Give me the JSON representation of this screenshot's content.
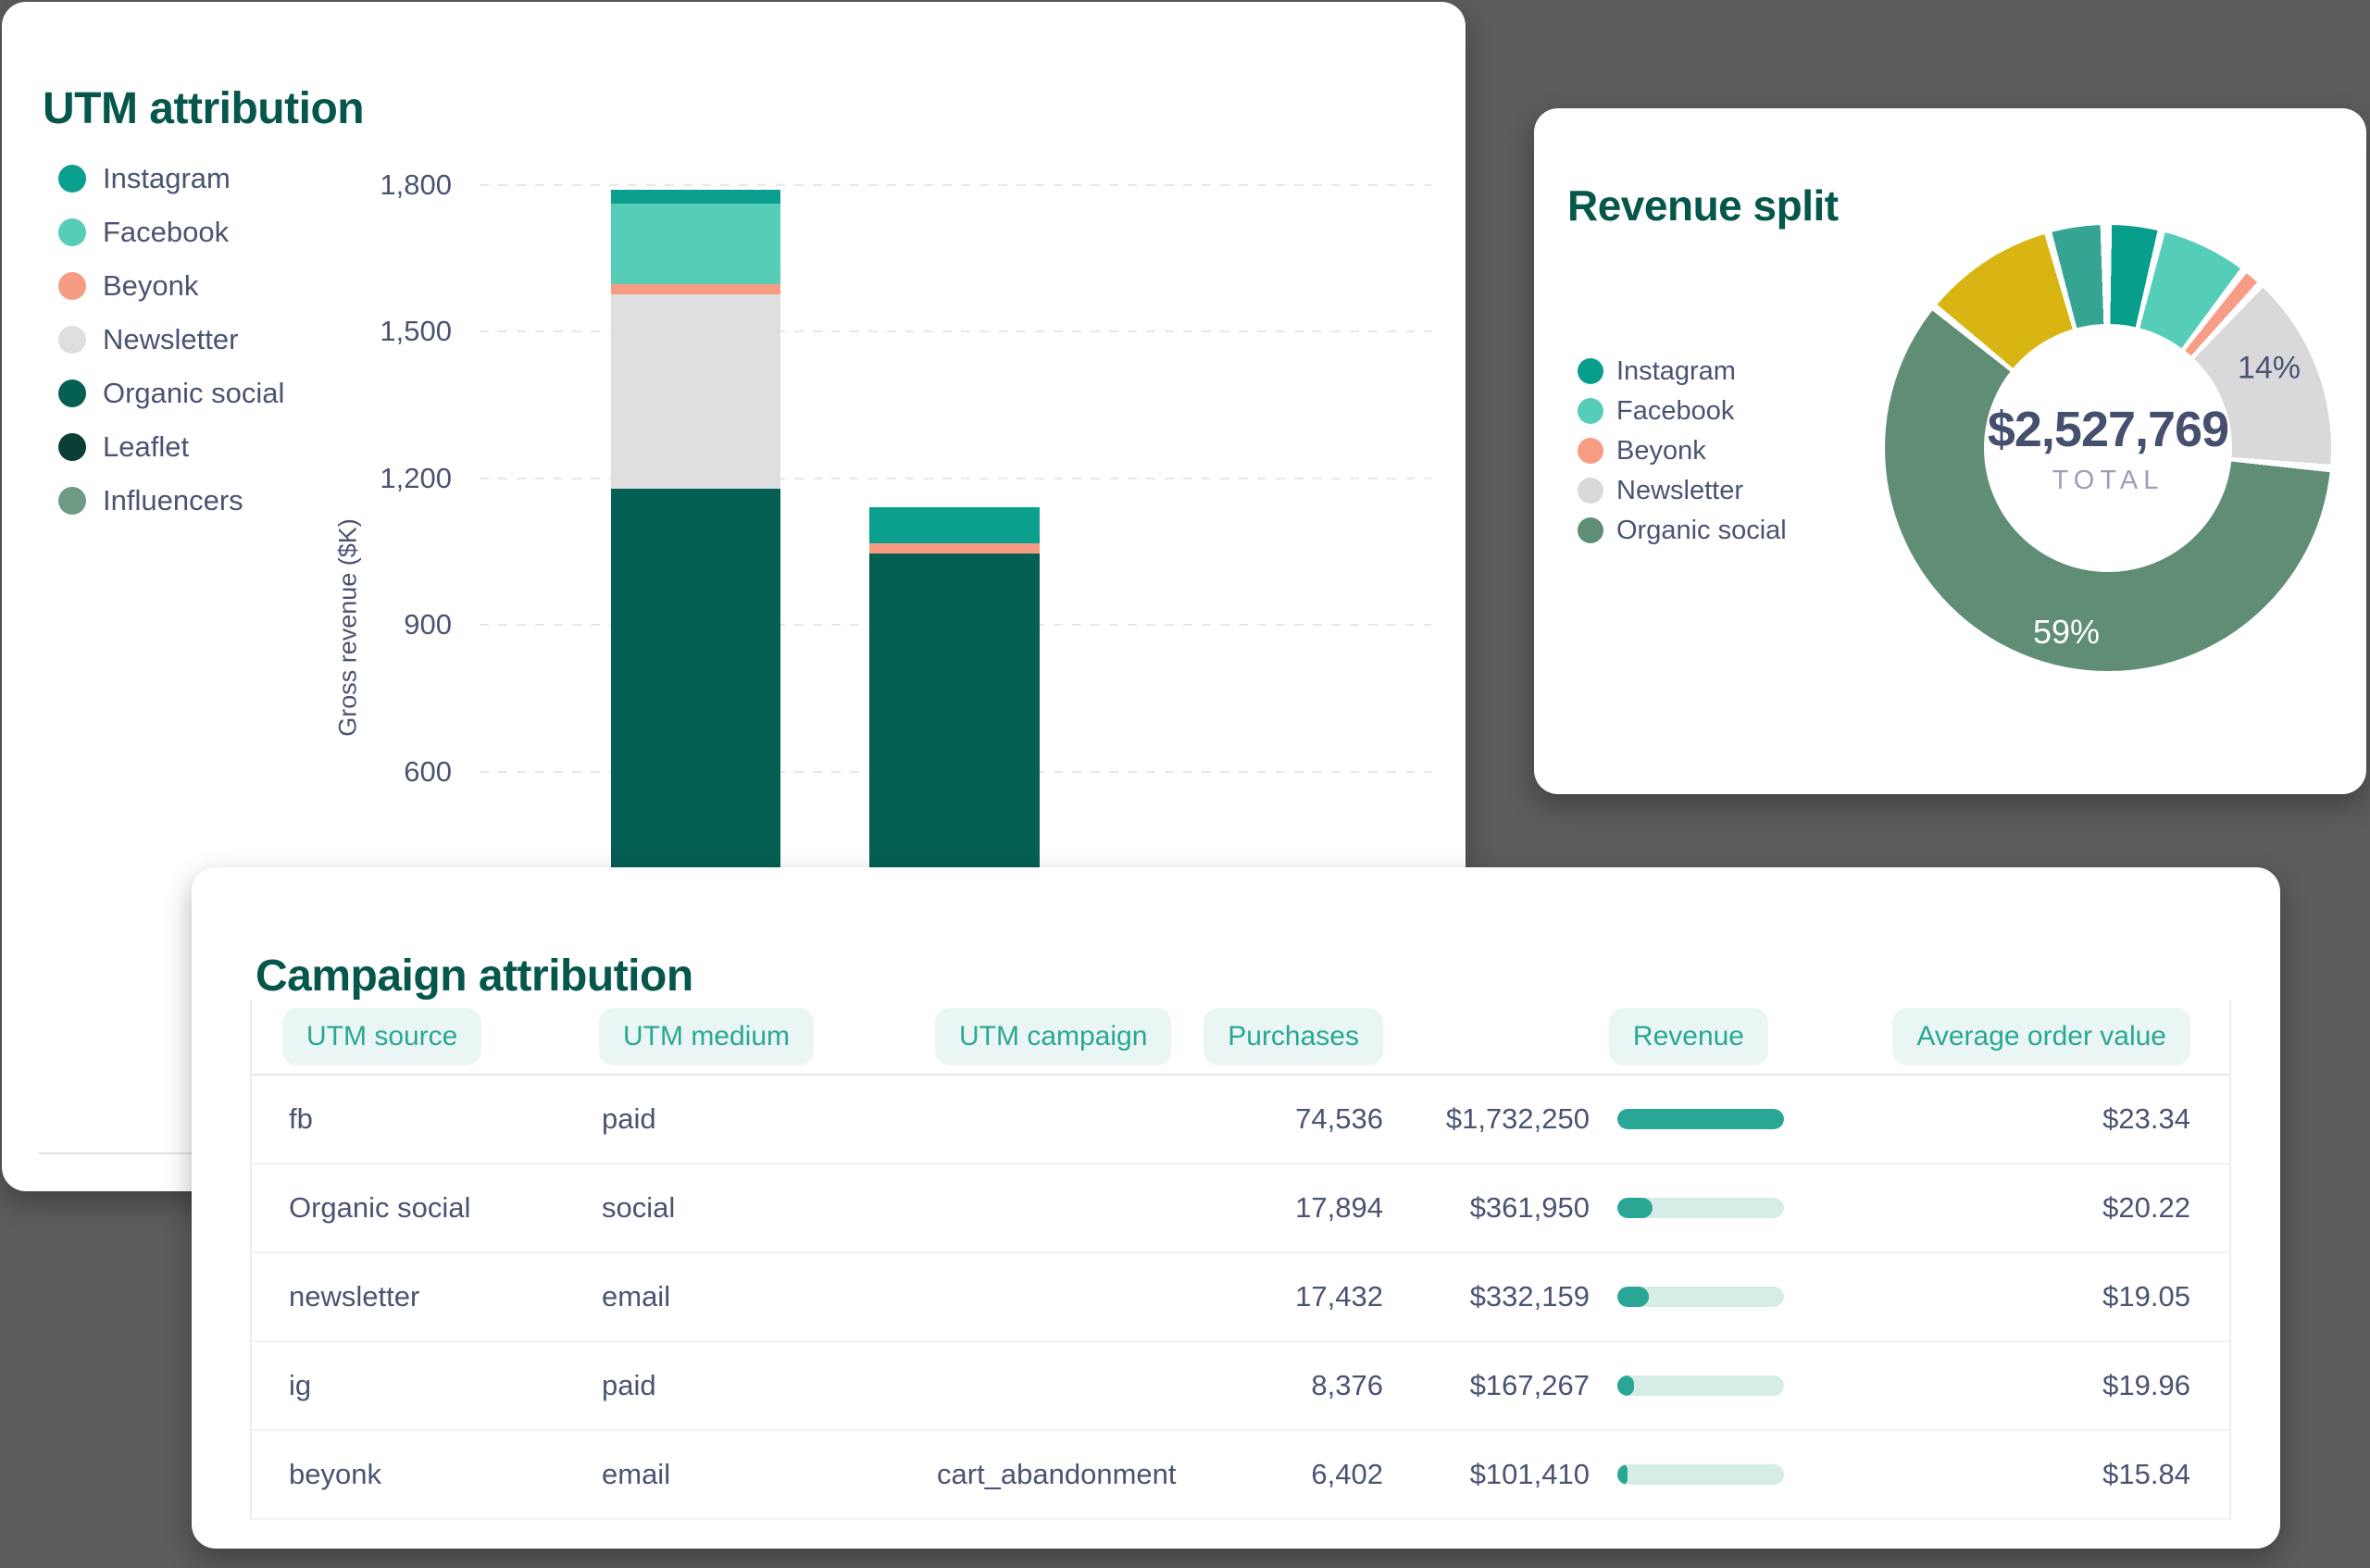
{
  "page": {
    "background_color": "#5D5C5A",
    "accent_teal": "#2AA794"
  },
  "utm_card": {
    "title": "UTM attribution",
    "y_axis_title": "Gross revenue ($K)",
    "y_ticks": [
      "1,800",
      "1,500",
      "1,200",
      "900",
      "600"
    ],
    "legend": [
      {
        "label": "Instagram",
        "color": "#0BA08D"
      },
      {
        "label": "Facebook",
        "color": "#55CDB7"
      },
      {
        "label": "Beyonk",
        "color": "#F79C83"
      },
      {
        "label": "Newsletter",
        "color": "#DEDEDF"
      },
      {
        "label": "Organic social",
        "color": "#065F53"
      },
      {
        "label": "Leaflet",
        "color": "#0C3E36"
      },
      {
        "label": "Influencers",
        "color": "#6E9B82"
      }
    ]
  },
  "revenue_card": {
    "title": "Revenue split",
    "center_value": "$2,527,769",
    "center_label": "TOTAL",
    "pct_labels": [
      {
        "text": "14%",
        "slice": "Newsletter"
      },
      {
        "text": "59%",
        "slice": "Organic social"
      }
    ],
    "legend": [
      {
        "label": "Instagram",
        "color": "#089E8C"
      },
      {
        "label": "Facebook",
        "color": "#55CDB9"
      },
      {
        "label": "Beyonk",
        "color": "#F89D85"
      },
      {
        "label": "Newsletter",
        "color": "#D9D9DB"
      },
      {
        "label": "Organic social",
        "color": "#5F8E75"
      }
    ]
  },
  "campaign_card": {
    "title": "Campaign attribution",
    "columns": [
      "UTM source",
      "UTM medium",
      "UTM campaign",
      "Purchases",
      "Revenue",
      "Average order value"
    ],
    "rows": [
      {
        "utm_source": "fb",
        "utm_medium": "paid",
        "utm_campaign": "",
        "purchases": "74,536",
        "revenue": "$1,732,250",
        "revenue_fill_pct": 100,
        "aov": "$23.34"
      },
      {
        "utm_source": "Organic social",
        "utm_medium": "social",
        "utm_campaign": "",
        "purchases": "17,894",
        "revenue": "$361,950",
        "revenue_fill_pct": 21,
        "aov": "$20.22"
      },
      {
        "utm_source": "newsletter",
        "utm_medium": "email",
        "utm_campaign": "",
        "purchases": "17,432",
        "revenue": "$332,159",
        "revenue_fill_pct": 19,
        "aov": "$19.05"
      },
      {
        "utm_source": "ig",
        "utm_medium": "paid",
        "utm_campaign": "",
        "purchases": "8,376",
        "revenue": "$167,267",
        "revenue_fill_pct": 10,
        "aov": "$19.96"
      },
      {
        "utm_source": "beyonk",
        "utm_medium": "email",
        "utm_campaign": "cart_abandonment",
        "purchases": "6,402",
        "revenue": "$101,410",
        "revenue_fill_pct": 6,
        "aov": "$15.84"
      }
    ]
  },
  "chart_data": [
    {
      "type": "bar",
      "stacked": true,
      "title": "UTM attribution",
      "ylabel": "Gross revenue ($K)",
      "y_ticks": [
        600,
        900,
        1200,
        1500,
        1800
      ],
      "ylim": [
        0,
        1800
      ],
      "grid": true,
      "legend_position": "left",
      "categories": [
        "",
        ""
      ],
      "x_labels_hidden": true,
      "note": "Bottom of bars hidden behind overlapping Campaign attribution card; values in $K estimated from gridlines",
      "series": [
        {
          "name": "Instagram",
          "values": [
            28,
            73
          ],
          "color": "#0BA08D"
        },
        {
          "name": "Facebook",
          "values": [
            165,
            0
          ],
          "color": "#55CDB7"
        },
        {
          "name": "Beyonk",
          "values": [
            21,
            21
          ],
          "color": "#F79C83"
        },
        {
          "name": "Newsletter",
          "values": [
            398,
            0
          ],
          "color": "#DEDEDF"
        },
        {
          "name": "Organic social",
          "values": [
            1179,
            1047
          ],
          "color": "#065F53"
        }
      ],
      "legend_only_series": [
        "Leaflet",
        "Influencers"
      ]
    },
    {
      "type": "pie",
      "subtype": "donut",
      "title": "Revenue split",
      "total_label": "TOTAL",
      "total_value": "$2,527,769",
      "slices": [
        {
          "label": "Instagram",
          "pct": 3.3,
          "color": "#089E8C"
        },
        {
          "label": "Facebook",
          "pct": 6.0,
          "color": "#55CDB9"
        },
        {
          "label": "Beyonk",
          "pct": 1.0,
          "color": "#F89D85"
        },
        {
          "label": "Newsletter",
          "pct": 14.0,
          "color": "#D9D9DB",
          "data_label": "14%"
        },
        {
          "label": "Organic social",
          "pct": 59.0,
          "color": "#5F8E75",
          "data_label": "59%"
        },
        {
          "label": "(unlabeled)",
          "pct": 9.3,
          "color": "#D8B512"
        },
        {
          "label": "(unlabeled)",
          "pct": 3.5,
          "color": "#35A493"
        }
      ]
    }
  ]
}
